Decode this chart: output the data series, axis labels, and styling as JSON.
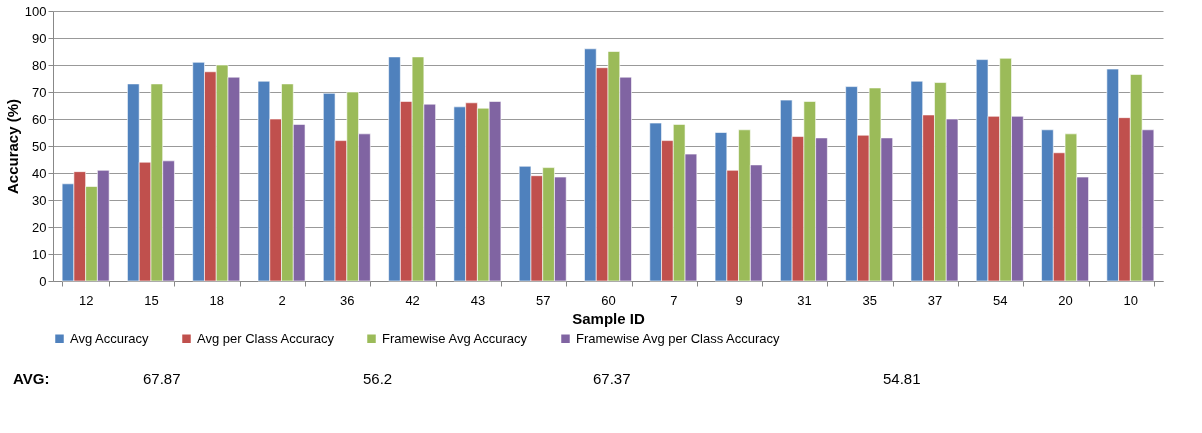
{
  "chart_data": {
    "type": "bar",
    "xlabel": "Sample ID",
    "ylabel": "Accuracy (%)",
    "categories": [
      "12",
      "15",
      "18",
      "2",
      "36",
      "42",
      "43",
      "57",
      "60",
      "7",
      "9",
      "31",
      "35",
      "37",
      "54",
      "20",
      "10"
    ],
    "series": [
      {
        "name": "Avg Accuracy",
        "color": "#4f81bd",
        "values": [
          36,
          73,
          81,
          74,
          69.5,
          83,
          64.5,
          42.5,
          86,
          58.5,
          55,
          67,
          72,
          74,
          82,
          56,
          78.5
        ]
      },
      {
        "name": "Avg per Class Accuracy",
        "color": "#c0504d",
        "values": [
          40.5,
          44,
          77.5,
          60,
          52,
          66.5,
          66,
          39,
          79,
          52,
          41,
          53.5,
          54,
          61.5,
          61,
          47.5,
          60.5
        ]
      },
      {
        "name": "Framewise Avg Accuracy",
        "color": "#9bbb59",
        "values": [
          35,
          73,
          80,
          73,
          70,
          83,
          64,
          42,
          85,
          58,
          56,
          66.5,
          71.5,
          73.5,
          82.5,
          54.5,
          76.5
        ]
      },
      {
        "name": "Framewise Avg per Class Accuracy",
        "color": "#8064a2",
        "values": [
          41,
          44.5,
          75.5,
          58,
          54.5,
          65.5,
          66.5,
          38.5,
          75.5,
          47,
          43,
          53,
          53,
          60,
          61,
          38.5,
          56
        ]
      }
    ],
    "ylim": [
      0,
      100
    ],
    "yticks": [
      0,
      10,
      20,
      30,
      40,
      50,
      60,
      70,
      80,
      90,
      100
    ],
    "grid": "y",
    "legend": "bottom",
    "annotations": [
      "AVG:",
      "67.87",
      "56.2",
      "67.37",
      "54.81"
    ]
  }
}
